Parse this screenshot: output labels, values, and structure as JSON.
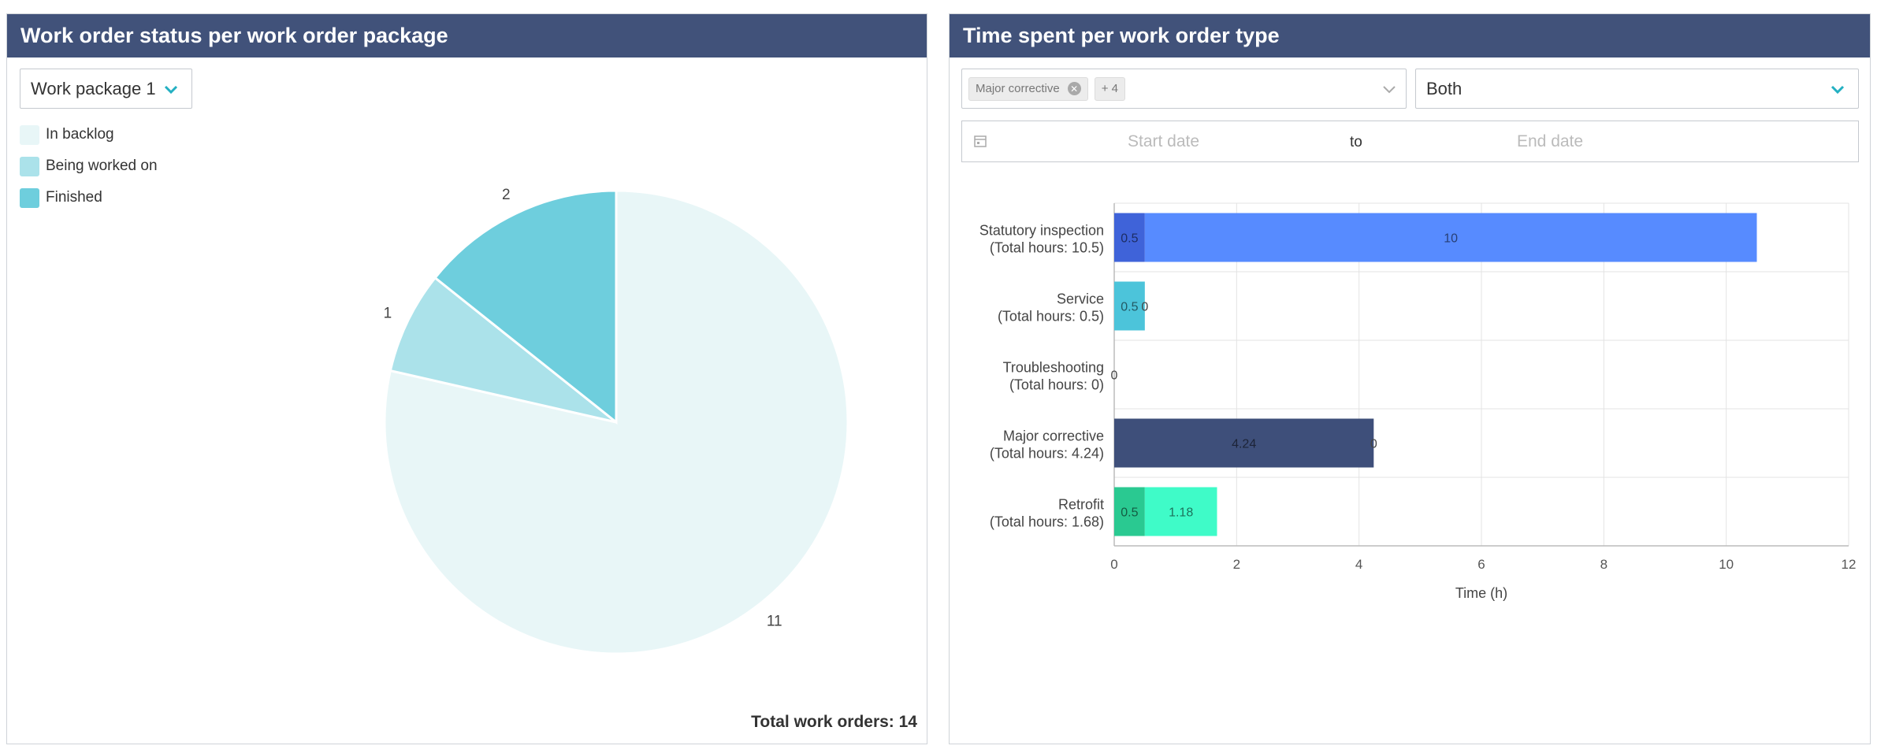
{
  "left_panel": {
    "title": "Work order status per work order package",
    "package_select": {
      "value": "Work package 1"
    },
    "legend": [
      {
        "label": "In backlog",
        "color": "#e8f6f7"
      },
      {
        "label": "Being worked on",
        "color": "#abe2ea"
      },
      {
        "label": "Finished",
        "color": "#6ecedd"
      }
    ],
    "total_label": "Total work orders: 14"
  },
  "right_panel": {
    "title": "Time spent per work order type",
    "type_filter": {
      "chip_label": "Major corrective",
      "more_label": "+ 4",
      "chip_close_icon": "close-icon"
    },
    "mode_select": {
      "value": "Both"
    },
    "date_range": {
      "start_placeholder": "Start date",
      "separator": "to",
      "end_placeholder": "End date"
    }
  },
  "chart_data": [
    {
      "type": "pie",
      "title": "",
      "slices": [
        {
          "label": "In backlog",
          "value": 11,
          "color": "#e8f6f7"
        },
        {
          "label": "Being worked on",
          "value": 1,
          "color": "#abe2ea"
        },
        {
          "label": "Finished",
          "value": 2,
          "color": "#6ecedd"
        }
      ]
    },
    {
      "type": "bar",
      "orientation": "horizontal",
      "stacked": true,
      "xlabel": "Time (h)",
      "xlim": [
        0,
        12
      ],
      "xticks": [
        0,
        2,
        4,
        6,
        8,
        10,
        12
      ],
      "grid": true,
      "categories": [
        {
          "line1": "Statutory inspection",
          "line2": "(Total hours: 10.5)",
          "segments": [
            {
              "value": 0.5,
              "label": "0.5",
              "color": "#3f63d9"
            },
            {
              "value": 10,
              "label": "10",
              "color": "#578bff"
            }
          ]
        },
        {
          "line1": "Service",
          "line2": "(Total hours: 0.5)",
          "segments": [
            {
              "value": 0.5,
              "label": "0.5",
              "color": "#4cc4da"
            },
            {
              "value": 0,
              "label": "0",
              "color": "#4cc4da"
            }
          ]
        },
        {
          "line1": "Troubleshooting",
          "line2": "(Total hours: 0)",
          "segments": [
            {
              "value": 0,
              "label": "0",
              "color": "#cccccc"
            }
          ]
        },
        {
          "line1": "Major corrective",
          "line2": "(Total hours: 4.24)",
          "segments": [
            {
              "value": 4.24,
              "label": "4.24",
              "color": "#3e4f7a"
            },
            {
              "value": 0,
              "label": "0",
              "color": "#3e4f7a"
            }
          ]
        },
        {
          "line1": "Retrofit",
          "line2": "(Total hours: 1.68)",
          "segments": [
            {
              "value": 0.5,
              "label": "0.5",
              "color": "#2ac991"
            },
            {
              "value": 1.18,
              "label": "1.18",
              "color": "#3ffbc8"
            }
          ]
        }
      ]
    }
  ]
}
